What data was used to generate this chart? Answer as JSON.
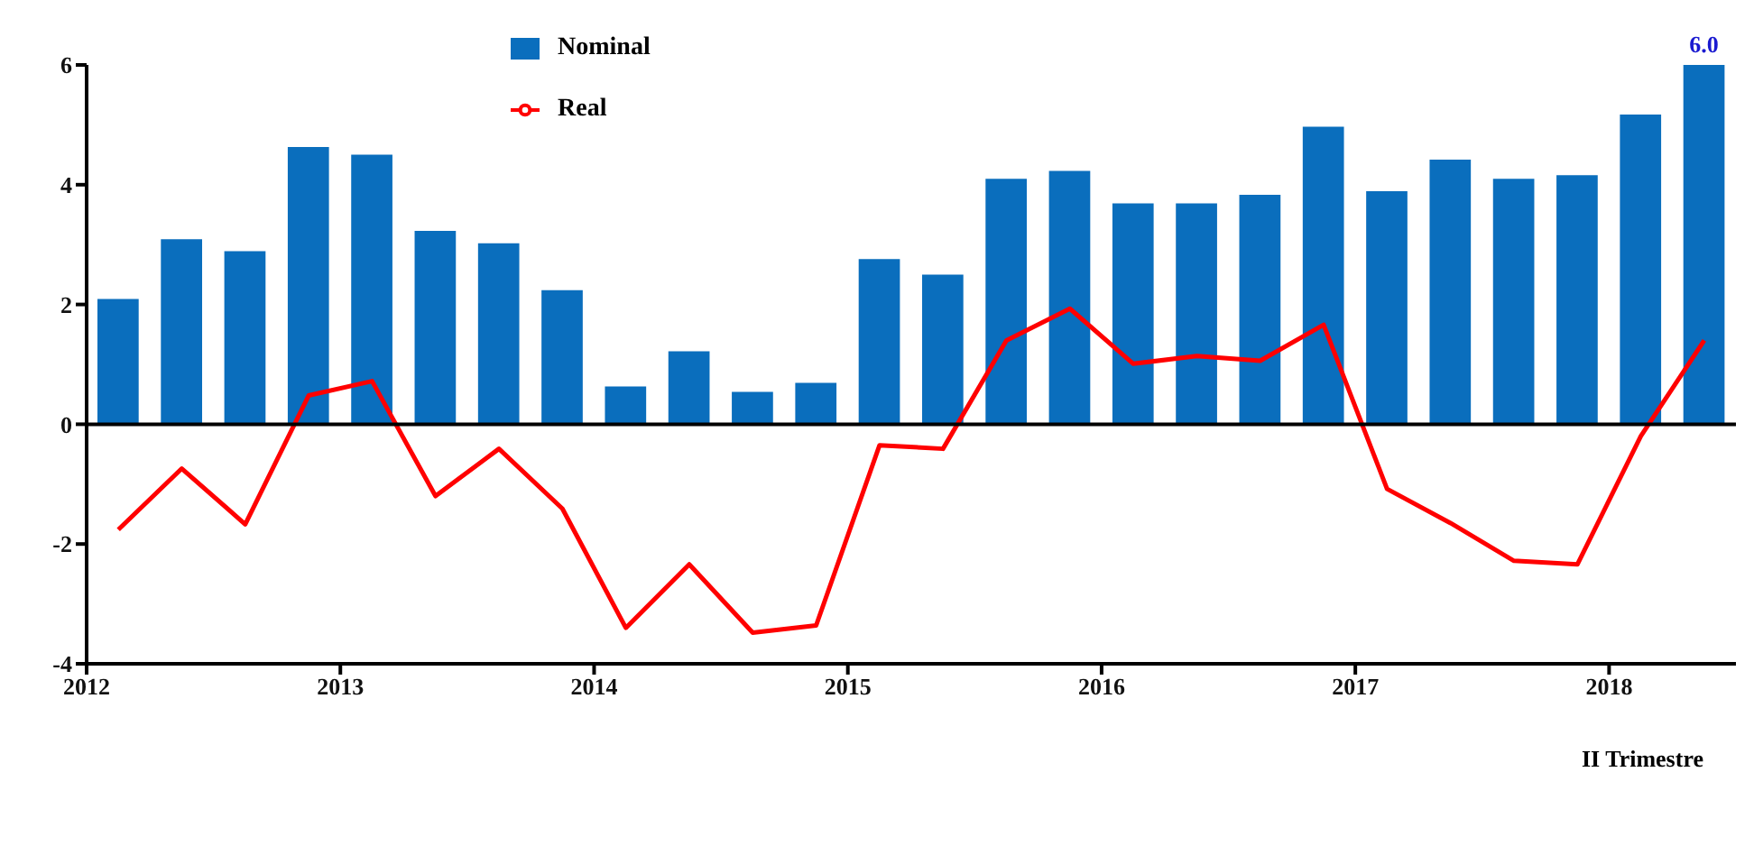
{
  "chart_data": {
    "type": "bar",
    "x": [
      2012.125,
      2012.375,
      2012.625,
      2012.875,
      2013.125,
      2013.375,
      2013.625,
      2013.875,
      2014.125,
      2014.375,
      2014.625,
      2014.875,
      2015.125,
      2015.375,
      2015.625,
      2015.875,
      2016.125,
      2016.375,
      2016.625,
      2016.875,
      2017.125,
      2017.375,
      2017.625,
      2017.875,
      2018.125,
      2018.375
    ],
    "series": [
      {
        "name": "Nominal",
        "color": "#0a6ebd",
        "values": [
          2.09,
          3.09,
          2.89,
          4.63,
          4.5,
          3.23,
          3.02,
          2.24,
          0.63,
          1.22,
          0.54,
          0.69,
          2.76,
          2.5,
          4.1,
          4.23,
          3.69,
          3.69,
          3.83,
          4.97,
          3.89,
          4.42,
          4.1,
          4.16,
          5.17,
          6.0
        ],
        "value_labels": [
          null,
          null,
          null,
          null,
          null,
          null,
          null,
          null,
          null,
          null,
          null,
          null,
          null,
          null,
          null,
          null,
          null,
          null,
          null,
          null,
          null,
          null,
          null,
          null,
          null,
          "6.0"
        ]
      },
      {
        "name": "Real",
        "type": "line",
        "color": "#ff0000",
        "values": [
          -1.76,
          -0.74,
          -1.67,
          0.48,
          0.72,
          -1.2,
          -0.41,
          -1.41,
          -3.4,
          -2.34,
          -3.48,
          -3.36,
          -0.35,
          -0.41,
          1.4,
          1.93,
          1.01,
          1.14,
          1.06,
          1.66,
          -1.08,
          -1.65,
          -2.28,
          -2.34,
          -0.2,
          1.4
        ]
      }
    ],
    "xlim": [
      2012,
      2018.5
    ],
    "xticks": [
      2012,
      2013,
      2014,
      2015,
      2016,
      2017,
      2018
    ],
    "ylim": [
      -4,
      6
    ],
    "yticks": [
      -4,
      -2,
      0,
      2,
      4,
      6
    ],
    "ref_lines": [
      {
        "axis": "y",
        "value": 0,
        "color": "#000000"
      }
    ],
    "annotations": [
      "II Trimestre"
    ],
    "legend": "top",
    "grid": false,
    "marker": "none"
  }
}
